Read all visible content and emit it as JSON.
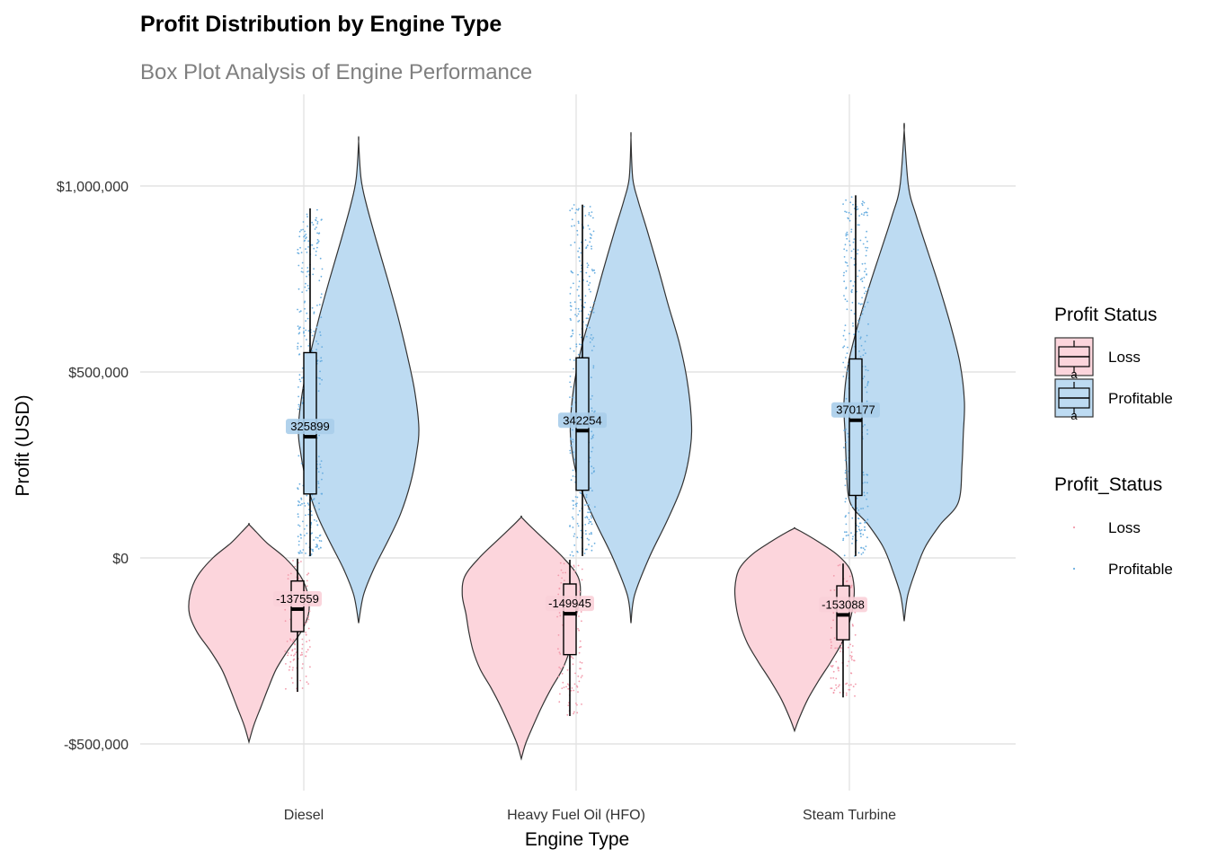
{
  "chart_data": {
    "type": "violin",
    "title": "Profit Distribution by Engine Type",
    "subtitle": "Box Plot Analysis of Engine Performance",
    "xlabel": "Engine Type",
    "ylabel": "Profit (USD)",
    "categories": [
      "Diesel",
      "Heavy Fuel Oil (HFO)",
      "Steam Turbine"
    ],
    "ylim": [
      -620000,
      1240000
    ],
    "yticks": [
      {
        "value": 1000000,
        "label": "$1,000,000"
      },
      {
        "value": 500000,
        "label": "$500,000"
      },
      {
        "value": 0,
        "label": "$0"
      },
      {
        "value": -500000,
        "label": "-$500,000"
      }
    ],
    "grid": true,
    "legend_position": "right",
    "colors": {
      "Loss": {
        "fill": "#fcd5dc",
        "point": "#f29aab",
        "label_bg": "#f9d0d8"
      },
      "Profitable": {
        "fill": "#bddbf2",
        "point": "#6aaee0",
        "label_bg": "#a9cdea"
      }
    },
    "series": [
      {
        "name": "Loss",
        "groups": [
          {
            "category": "Diesel",
            "box": {
              "min": -360000,
              "q1": -198000,
              "median": -137559,
              "q3": -62000,
              "max": -2000
            },
            "median_label": "-137559",
            "violin": {
              "min": -495000,
              "max": 90000,
              "profile": [
                [
                  -495000,
                  0.0
                ],
                [
                  -450000,
                  0.08
                ],
                [
                  -400000,
                  0.2
                ],
                [
                  -350000,
                  0.32
                ],
                [
                  -300000,
                  0.45
                ],
                [
                  -250000,
                  0.64
                ],
                [
                  -200000,
                  0.86
                ],
                [
                  -150000,
                  0.99
                ],
                [
                  -100000,
                  0.98
                ],
                [
                  -50000,
                  0.86
                ],
                [
                  0,
                  0.6
                ],
                [
                  40000,
                  0.3
                ],
                [
                  70000,
                  0.12
                ],
                [
                  90000,
                  0.0
                ]
              ]
            }
          },
          {
            "category": "Heavy Fuel Oil (HFO)",
            "box": {
              "min": -425000,
              "q1": -260000,
              "median": -149945,
              "q3": -70000,
              "max": -5000
            },
            "median_label": "-149945",
            "violin": {
              "min": -540000,
              "max": 110000,
              "profile": [
                [
                  -540000,
                  0.0
                ],
                [
                  -500000,
                  0.07
                ],
                [
                  -450000,
                  0.2
                ],
                [
                  -400000,
                  0.34
                ],
                [
                  -350000,
                  0.5
                ],
                [
                  -300000,
                  0.68
                ],
                [
                  -250000,
                  0.8
                ],
                [
                  -200000,
                  0.87
                ],
                [
                  -150000,
                  0.92
                ],
                [
                  -100000,
                  0.98
                ],
                [
                  -50000,
                  0.94
                ],
                [
                  0,
                  0.7
                ],
                [
                  50000,
                  0.38
                ],
                [
                  90000,
                  0.12
                ],
                [
                  110000,
                  0.0
                ]
              ]
            }
          },
          {
            "category": "Steam Turbine",
            "box": {
              "min": -375000,
              "q1": -220000,
              "median": -153088,
              "q3": -75000,
              "max": -15000
            },
            "median_label": "-153088",
            "violin": {
              "min": -465000,
              "max": 80000,
              "profile": [
                [
                  -465000,
                  0.0
                ],
                [
                  -430000,
                  0.08
                ],
                [
                  -380000,
                  0.22
                ],
                [
                  -330000,
                  0.4
                ],
                [
                  -280000,
                  0.6
                ],
                [
                  -230000,
                  0.78
                ],
                [
                  -180000,
                  0.9
                ],
                [
                  -130000,
                  0.97
                ],
                [
                  -80000,
                  0.99
                ],
                [
                  -30000,
                  0.92
                ],
                [
                  10000,
                  0.7
                ],
                [
                  45000,
                  0.38
                ],
                [
                  70000,
                  0.12
                ],
                [
                  80000,
                  0.0
                ]
              ]
            }
          }
        ]
      },
      {
        "name": "Profitable",
        "groups": [
          {
            "category": "Diesel",
            "box": {
              "min": 5000,
              "q1": 172000,
              "median": 325899,
              "q3": 552000,
              "max": 940000
            },
            "median_label": "325899",
            "violin": {
              "min": -175000,
              "max": 1120000,
              "profile": [
                [
                  -175000,
                  0.0
                ],
                [
                  -100000,
                  0.08
                ],
                [
                  -30000,
                  0.25
                ],
                [
                  50000,
                  0.5
                ],
                [
                  120000,
                  0.7
                ],
                [
                  200000,
                  0.86
                ],
                [
                  280000,
                  0.96
                ],
                [
                  350000,
                  1.0
                ],
                [
                  450000,
                  0.93
                ],
                [
                  550000,
                  0.8
                ],
                [
                  650000,
                  0.65
                ],
                [
                  750000,
                  0.48
                ],
                [
                  850000,
                  0.3
                ],
                [
                  950000,
                  0.13
                ],
                [
                  1020000,
                  0.04
                ],
                [
                  1120000,
                  0.0
                ]
              ]
            }
          },
          {
            "category": "Heavy Fuel Oil (HFO)",
            "box": {
              "min": 5000,
              "q1": 182000,
              "median": 342254,
              "q3": 538000,
              "max": 950000
            },
            "median_label": "342254",
            "violin": {
              "min": -175000,
              "max": 1130000,
              "profile": [
                [
                  -175000,
                  0.0
                ],
                [
                  -100000,
                  0.06
                ],
                [
                  0,
                  0.3
                ],
                [
                  100000,
                  0.6
                ],
                [
                  200000,
                  0.86
                ],
                [
                  300000,
                  0.99
                ],
                [
                  380000,
                  1.0
                ],
                [
                  480000,
                  0.93
                ],
                [
                  580000,
                  0.8
                ],
                [
                  680000,
                  0.62
                ],
                [
                  780000,
                  0.45
                ],
                [
                  880000,
                  0.27
                ],
                [
                  960000,
                  0.12
                ],
                [
                  1020000,
                  0.03
                ],
                [
                  1130000,
                  0.0
                ]
              ]
            }
          },
          {
            "category": "Steam Turbine",
            "box": {
              "min": 5000,
              "q1": 168000,
              "median": 370177,
              "q3": 535000,
              "max": 975000
            },
            "median_label": "370177",
            "violin": {
              "min": -170000,
              "max": 1150000,
              "profile": [
                [
                  -170000,
                  0.0
                ],
                [
                  -100000,
                  0.06
                ],
                [
                  -30000,
                  0.2
                ],
                [
                  30000,
                  0.35
                ],
                [
                  90000,
                  0.6
                ],
                [
                  150000,
                  0.9
                ],
                [
                  250000,
                  0.96
                ],
                [
                  330000,
                  0.98
                ],
                [
                  420000,
                  1.0
                ],
                [
                  520000,
                  0.93
                ],
                [
                  620000,
                  0.78
                ],
                [
                  720000,
                  0.6
                ],
                [
                  820000,
                  0.4
                ],
                [
                  920000,
                  0.2
                ],
                [
                  1000000,
                  0.07
                ],
                [
                  1150000,
                  0.0
                ]
              ]
            }
          }
        ]
      }
    ],
    "legends": [
      {
        "title": "Profit Status",
        "items": [
          "Loss",
          "Profitable"
        ],
        "key_text": "a"
      },
      {
        "title": "Profit_Status",
        "items": [
          "Loss",
          "Profitable"
        ]
      }
    ]
  }
}
